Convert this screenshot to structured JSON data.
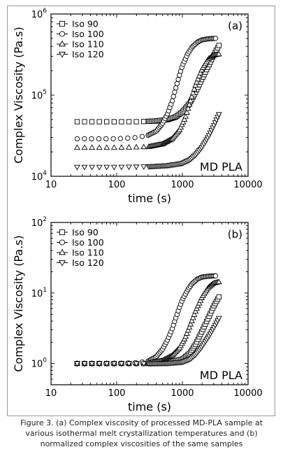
{
  "chart_data": [
    {
      "type": "scatter",
      "panel_label": "(a)",
      "sample_label": "MD PLA",
      "xlabel": "time (s)",
      "ylabel": "Complex Viscosity (Pa.s)",
      "xscale": "log",
      "yscale": "log",
      "xlim": [
        10,
        10000
      ],
      "ylim": [
        10000,
        1000000
      ],
      "x_ticks": [
        "10",
        "100",
        "1000",
        "10000"
      ],
      "y_ticks": [
        {
          "base": "10",
          "exp": "4"
        },
        {
          "base": "10",
          "exp": "5"
        },
        {
          "base": "10",
          "exp": "6"
        }
      ],
      "legend_position": "top-left",
      "series": [
        {
          "name": "Iso 90",
          "marker": "square",
          "tmin": 25,
          "tmax": 3600,
          "x": [
            25,
            100,
            200,
            400,
            600,
            800,
            1000,
            1300,
            1600,
            2000,
            2500,
            3000,
            3600
          ],
          "y": [
            47000,
            47000,
            47000,
            48000,
            50000,
            54000,
            62000,
            80000,
            110000,
            160000,
            230000,
            310000,
            410000
          ]
        },
        {
          "name": "Iso 100",
          "marker": "circle",
          "tmin": 25,
          "tmax": 3200,
          "x": [
            25,
            100,
            200,
            300,
            400,
            500,
            600,
            700,
            800,
            900,
            1000,
            1200,
            1400,
            1700,
            2000,
            2500,
            3200
          ],
          "y": [
            29000,
            29000,
            30000,
            32000,
            36000,
            45000,
            60000,
            85000,
            125000,
            175000,
            230000,
            320000,
            390000,
            450000,
            480000,
            495000,
            500000
          ]
        },
        {
          "name": "Iso 110",
          "marker": "triangle-up",
          "tmin": 25,
          "tmax": 3600,
          "x": [
            25,
            100,
            300,
            500,
            700,
            900,
            1100,
            1300,
            1600,
            2000,
            2500,
            3000,
            3600
          ],
          "y": [
            22500,
            22500,
            23000,
            25000,
            29000,
            37000,
            52000,
            80000,
            135000,
            210000,
            280000,
            310000,
            320000
          ]
        },
        {
          "name": "Iso 120",
          "marker": "triangle-down",
          "tmin": 25,
          "tmax": 3600,
          "x": [
            25,
            100,
            300,
            600,
            1000,
            1300,
            1600,
            2000,
            2500,
            3000,
            3600
          ],
          "y": [
            13000,
            13000,
            13200,
            13600,
            14500,
            16000,
            18500,
            23000,
            31000,
            42000,
            58000
          ]
        }
      ]
    },
    {
      "type": "scatter",
      "panel_label": "(b)",
      "sample_label": "MD PLA",
      "xlabel": "time (s)",
      "ylabel": "Complex Viscosity (Pa.s)",
      "xscale": "log",
      "yscale": "log",
      "xlim": [
        10,
        10000
      ],
      "ylim": [
        0.5,
        100
      ],
      "x_ticks": [
        "10",
        "100",
        "1000",
        "10000"
      ],
      "y_ticks": [
        {
          "base": "10",
          "exp": "0"
        },
        {
          "base": "10",
          "exp": "1"
        },
        {
          "base": "10",
          "exp": "2"
        }
      ],
      "legend_position": "top-left",
      "series": [
        {
          "name": "Iso 90",
          "marker": "square",
          "tmin": 25,
          "tmax": 3600,
          "x": [
            25,
            100,
            300,
            600,
            1000,
            1300,
            1600,
            2000,
            2500,
            3000,
            3600
          ],
          "y": [
            1.0,
            1.0,
            1.0,
            1.04,
            1.15,
            1.4,
            1.9,
            2.9,
            4.5,
            6.5,
            8.8
          ]
        },
        {
          "name": "Iso 100",
          "marker": "circle",
          "tmin": 25,
          "tmax": 3200,
          "x": [
            25,
            100,
            200,
            300,
            400,
            500,
            600,
            700,
            800,
            900,
            1000,
            1200,
            1400,
            1700,
            2000,
            2500,
            3200
          ],
          "y": [
            1.0,
            1.0,
            1.02,
            1.08,
            1.25,
            1.6,
            2.2,
            3.1,
            4.5,
            6.2,
            8.0,
            11.0,
            13.5,
            15.8,
            16.8,
            17.3,
            17.5
          ]
        },
        {
          "name": "Iso 110",
          "marker": "triangle-up",
          "tmin": 25,
          "tmax": 3600,
          "x": [
            25,
            100,
            300,
            500,
            700,
            900,
            1100,
            1300,
            1600,
            2000,
            2500,
            3000,
            3600
          ],
          "y": [
            1.0,
            1.0,
            1.02,
            1.1,
            1.3,
            1.65,
            2.3,
            3.4,
            5.6,
            8.8,
            12.0,
            13.8,
            14.3
          ]
        },
        {
          "name": "Iso 120",
          "marker": "triangle-down",
          "tmin": 25,
          "tmax": 3600,
          "x": [
            25,
            100,
            300,
            600,
            1000,
            1300,
            1600,
            2000,
            2500,
            3000,
            3600
          ],
          "y": [
            1.0,
            1.0,
            1.0,
            1.01,
            1.05,
            1.15,
            1.35,
            1.75,
            2.4,
            3.2,
            4.4
          ]
        }
      ]
    }
  ],
  "caption": {
    "line1": "Figure 3. (a) Complex viscosity of processed MD-PLA sample at",
    "line2": "various isothermal melt crystallization temperatures and (b)",
    "line3": "normalized complex viscosities of the same samples"
  }
}
